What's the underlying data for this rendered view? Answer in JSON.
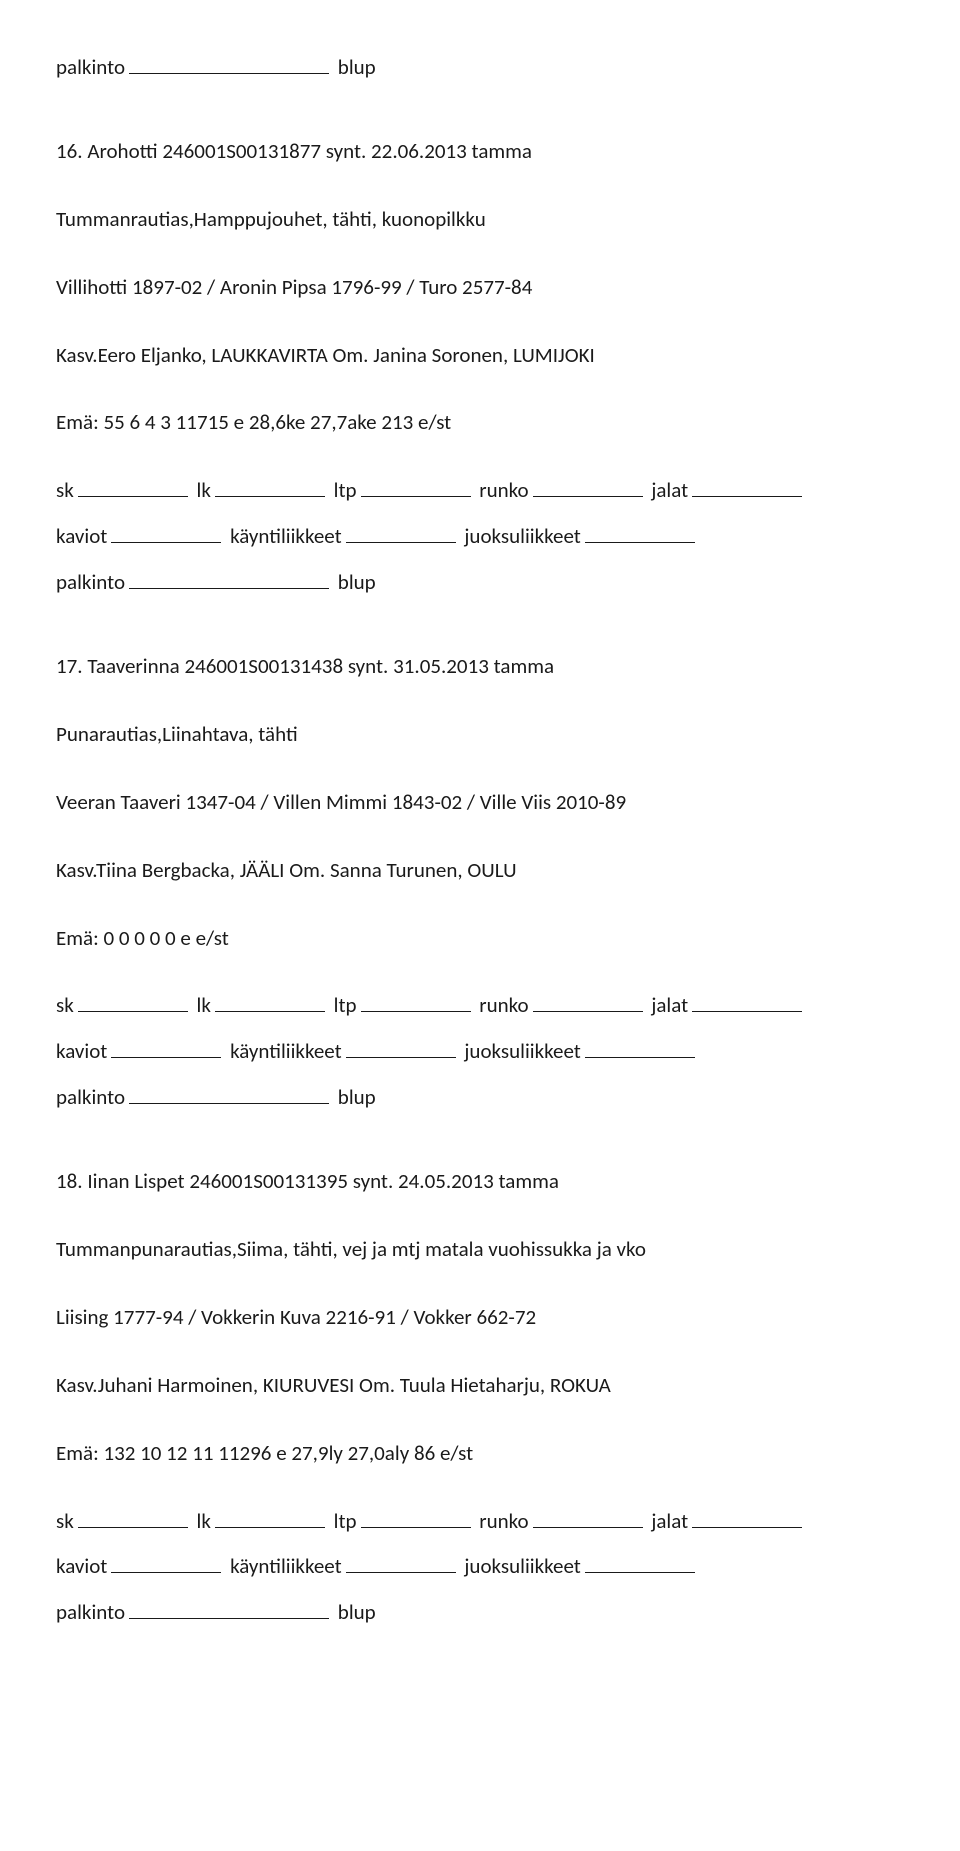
{
  "top": {
    "palkinto": "palkinto",
    "blup": "blup"
  },
  "entry16": {
    "header": "16. Arohotti 246001S00131877 synt. 22.06.2013 tamma",
    "desc": "Tummanrautias,Hamppujouhet, tähti, kuonopilkku",
    "pedigree": "Villihotti 1897-02 / Aronin Pipsa 1796-99 / Turo 2577-84",
    "kasv": "Kasv.Eero Eljanko, LAUKKAVIRTA Om. Janina Soronen, LUMIJOKI",
    "ema": "Emä: 55 6 4 3 11715 e 28,6ke 27,7ake 213 e/st",
    "sk": "sk",
    "lk": "lk",
    "ltp": "ltp",
    "runko": "runko",
    "jalat": "jalat",
    "kaviot": "kaviot",
    "kayntiliikkeet": "käyntiliikkeet",
    "juoksuliikkeet": "juoksuliikkeet",
    "palkinto": "palkinto",
    "blup": "blup"
  },
  "entry17": {
    "header": "17. Taaverinna 246001S00131438 synt. 31.05.2013 tamma",
    "desc": "Punarautias,Liinahtava, tähti",
    "pedigree": "Veeran Taaveri 1347-04 / Villen Mimmi 1843-02 / Ville Viis 2010-89",
    "kasv": "Kasv.Tiina Bergbacka, JÄÄLI Om. Sanna Turunen, OULU",
    "ema": "Emä: 0 0 0 0 0 e e/st",
    "sk": "sk",
    "lk": "lk",
    "ltp": "ltp",
    "runko": "runko",
    "jalat": "jalat",
    "kaviot": "kaviot",
    "kayntiliikkeet": "käyntiliikkeet",
    "juoksuliikkeet": "juoksuliikkeet",
    "palkinto": "palkinto",
    "blup": "blup"
  },
  "entry18": {
    "header": "18. Iinan Lispet 246001S00131395 synt. 24.05.2013 tamma",
    "desc": "Tummanpunarautias,Siima, tähti, vej ja mtj matala vuohissukka ja vko",
    "pedigree": "Liising 1777-94 / Vokkerin Kuva 2216-91 / Vokker 662-72",
    "kasv": "Kasv.Juhani Harmoinen, KIURUVESI Om. Tuula Hietaharju, ROKUA",
    "ema": "Emä: 132 10 12 11 11296 e 27,9ly 27,0aly 86 e/st",
    "sk": "sk",
    "lk": "lk",
    "ltp": "ltp",
    "runko": "runko",
    "jalat": "jalat",
    "kaviot": "kaviot",
    "kayntiliikkeet": "käyntiliikkeet",
    "juoksuliikkeet": "juoksuliikkeet",
    "palkinto": "palkinto",
    "blup": "blup"
  }
}
